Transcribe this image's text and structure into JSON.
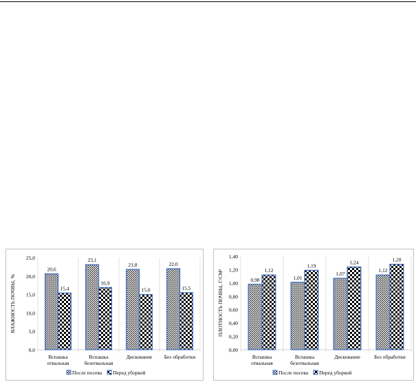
{
  "chart_data": [
    {
      "type": "bar",
      "ylabel": "ВЛАЖНОСТЬ ПОЧВЫ, %",
      "categories": [
        [
          "Вспашка",
          "отвальная"
        ],
        [
          "Вспашка",
          "безотвальная"
        ],
        [
          "Дискование"
        ],
        [
          "Без обработки"
        ]
      ],
      "series": [
        {
          "name": "После посева",
          "values": [
            20.6,
            23.1,
            21.8,
            22.0
          ],
          "labels": [
            "20,6",
            "23,1",
            "21,8",
            "22,0"
          ],
          "pattern": "dots"
        },
        {
          "name": "Перед уборкой",
          "values": [
            15.4,
            16.9,
            15.0,
            15.5
          ],
          "labels": [
            "15,4",
            "16,9",
            "15,0",
            "15,5"
          ],
          "pattern": "checker"
        }
      ],
      "ylim": [
        0,
        25
      ],
      "yticks": [
        0,
        5,
        10,
        15,
        20,
        25
      ],
      "ytick_labels": [
        "0,0",
        "5,0",
        "10,0",
        "15,0",
        "20,0",
        "25,0"
      ],
      "grid": "vertical category separators",
      "legend": "bottom-center",
      "colors": {
        "border": "#4472c4",
        "fill": "#000000",
        "background": "#ffffff"
      }
    },
    {
      "type": "bar",
      "ylabel": "ПЛОТНОСТЬ ПОЧВЫ, Г/СМ³",
      "categories": [
        [
          "Вспашка",
          "отвальная"
        ],
        [
          "Вспашка",
          "безотвальная"
        ],
        [
          "Дискование"
        ],
        [
          "Без обработки"
        ]
      ],
      "series": [
        {
          "name": "После посева",
          "values": [
            0.98,
            1.01,
            1.07,
            1.12
          ],
          "labels": [
            "0,98",
            "1,01",
            "1,07",
            "1,12"
          ],
          "pattern": "dots"
        },
        {
          "name": "Перед уборкой",
          "values": [
            1.12,
            1.19,
            1.24,
            1.28
          ],
          "labels": [
            "1,12",
            "1,19",
            "1,24",
            "1,28"
          ],
          "pattern": "checker"
        }
      ],
      "ylim": [
        0,
        1.4
      ],
      "yticks": [
        0,
        0.2,
        0.4,
        0.6,
        0.8,
        1.0,
        1.2,
        1.4
      ],
      "ytick_labels": [
        "0,00",
        "0,20",
        "0,40",
        "0,60",
        "0,80",
        "1,00",
        "1,20",
        "1,40"
      ],
      "grid": "vertical category separators",
      "legend": "bottom-center",
      "colors": {
        "border": "#4472c4",
        "fill": "#000000",
        "background": "#ffffff"
      }
    }
  ]
}
